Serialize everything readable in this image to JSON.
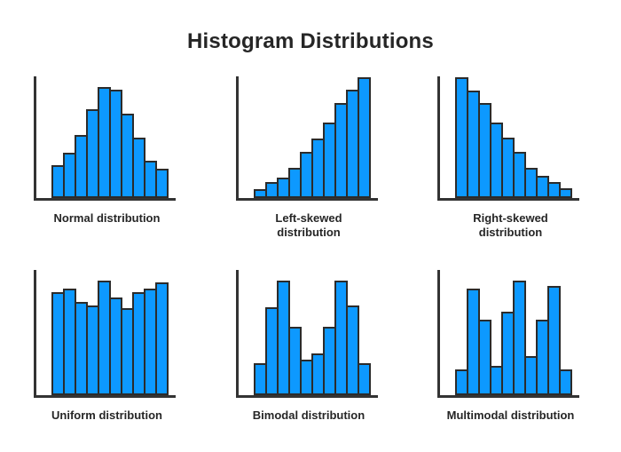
{
  "title": "Histogram Distributions",
  "colors": {
    "bar_fill": "#0D99FF",
    "bar_outline": "#2B2B2B",
    "axis": "#333333",
    "text": "#262626",
    "background": "#FFFFFF"
  },
  "chart_data": [
    {
      "type": "bar",
      "title": "Normal distribution",
      "bins": 10,
      "values": [
        27,
        37,
        52,
        73,
        91,
        89,
        69,
        50,
        31,
        24
      ],
      "xlabel": "",
      "ylabel": "",
      "ylim": [
        0,
        100
      ],
      "grid": false,
      "legend": false,
      "note": "bar heights are percent of y-axis height; no tick labels shown"
    },
    {
      "type": "bar",
      "title": "Left-skewed\ndistribution",
      "bins": 10,
      "values": [
        7,
        13,
        17,
        25,
        38,
        49,
        62,
        78,
        89,
        99
      ],
      "xlabel": "",
      "ylabel": "",
      "ylim": [
        0,
        100
      ],
      "grid": false,
      "legend": false,
      "note": "bar heights are percent of y-axis height; no tick labels shown"
    },
    {
      "type": "bar",
      "title": "Right-skewed\ndistribution",
      "bins": 10,
      "values": [
        99,
        88,
        78,
        62,
        50,
        38,
        25,
        18,
        13,
        8
      ],
      "xlabel": "",
      "ylabel": "",
      "ylim": [
        0,
        100
      ],
      "grid": false,
      "legend": false,
      "note": "bar heights are percent of y-axis height; no tick labels shown"
    },
    {
      "type": "bar",
      "title": "Uniform distribution",
      "bins": 10,
      "values": [
        82,
        85,
        74,
        71,
        91,
        78,
        69,
        82,
        85,
        90
      ],
      "xlabel": "",
      "ylabel": "",
      "ylim": [
        0,
        100
      ],
      "grid": false,
      "legend": false,
      "note": "bar heights are percent of y-axis height; no tick labels shown"
    },
    {
      "type": "bar",
      "title": "Bimodal distribution",
      "bins": 10,
      "values": [
        25,
        70,
        91,
        54,
        28,
        33,
        54,
        91,
        71,
        25
      ],
      "xlabel": "",
      "ylabel": "",
      "ylim": [
        0,
        100
      ],
      "grid": false,
      "legend": false,
      "note": "bar heights are percent of y-axis height; no tick labels shown"
    },
    {
      "type": "bar",
      "title": "Multimodal distribution",
      "bins": 10,
      "values": [
        20,
        85,
        60,
        23,
        66,
        91,
        31,
        60,
        87,
        20
      ],
      "xlabel": "",
      "ylabel": "",
      "ylim": [
        0,
        100
      ],
      "grid": false,
      "legend": false,
      "note": "bar heights are percent of y-axis height; no tick labels shown"
    }
  ]
}
